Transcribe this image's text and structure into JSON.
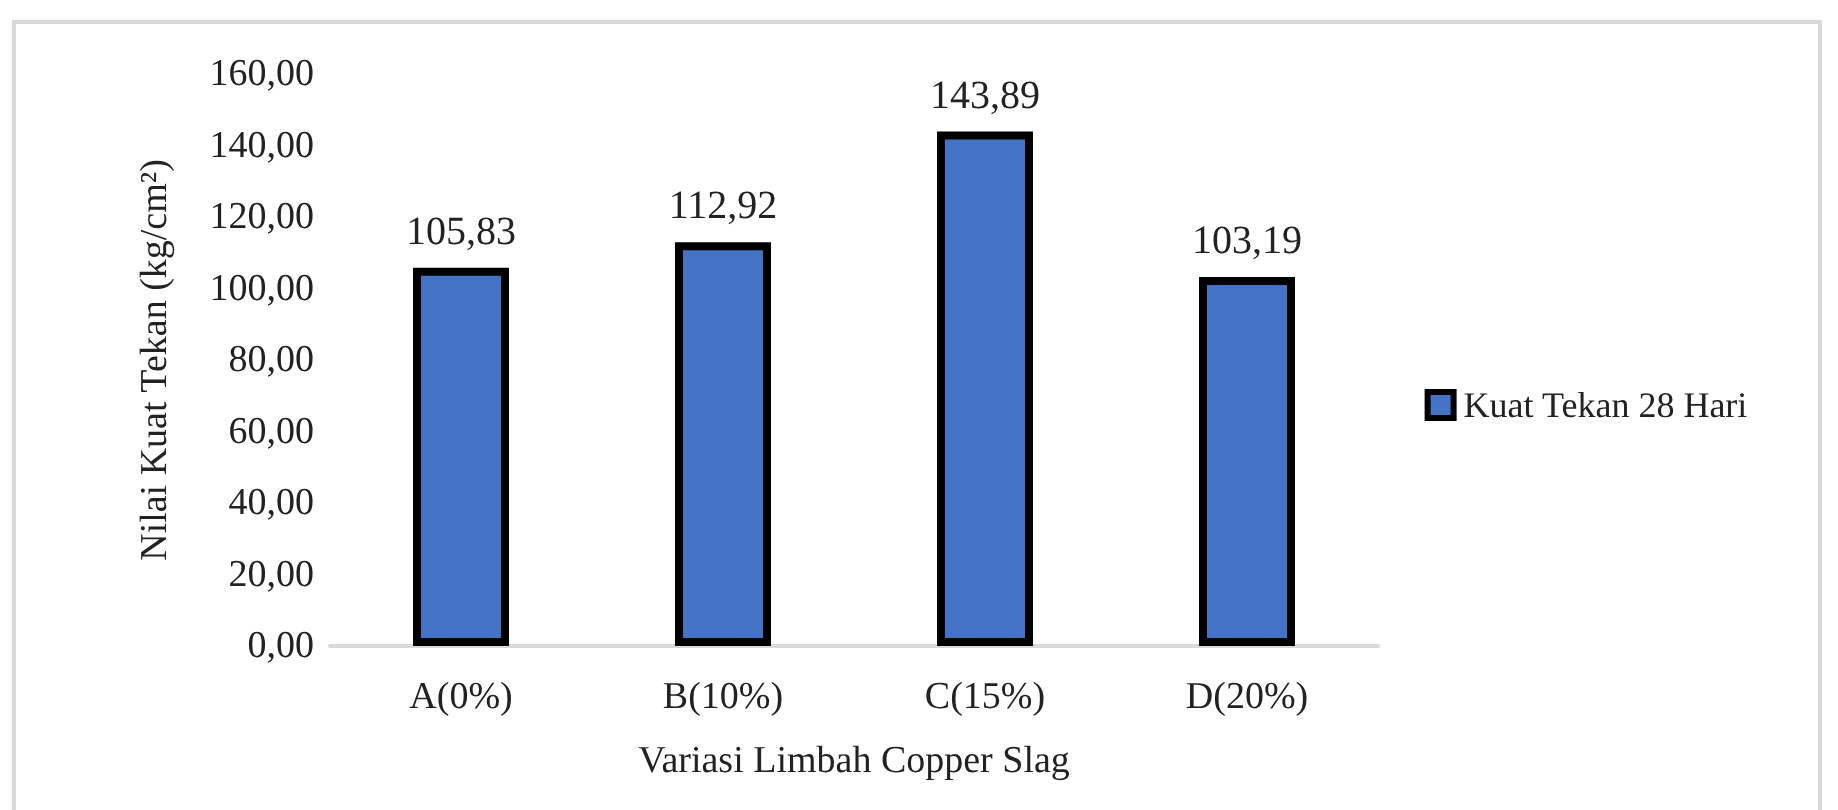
{
  "chart_data": {
    "type": "bar",
    "xlabel": "Variasi Limbah Copper Slag",
    "ylabel": "Nilai Kuat Tekan (kg/cm²)",
    "categories": [
      "A(0%)",
      "B(10%)",
      "C(15%)",
      "D(20%)"
    ],
    "series": [
      {
        "name": "Kuat Tekan 28 Hari",
        "color": "#4472c4",
        "values": [
          105.83,
          112.92,
          143.89,
          103.19
        ],
        "value_labels": [
          "105,83",
          "112,92",
          "143,89",
          "103,19"
        ]
      }
    ],
    "ylim": [
      0,
      160
    ],
    "yticks": [
      {
        "value": 0,
        "label": "0,00"
      },
      {
        "value": 20,
        "label": "20,00"
      },
      {
        "value": 40,
        "label": "40,00"
      },
      {
        "value": 60,
        "label": "60,00"
      },
      {
        "value": 80,
        "label": "80,00"
      },
      {
        "value": 100,
        "label": "100,00"
      },
      {
        "value": 120,
        "label": "120,00"
      },
      {
        "value": 140,
        "label": "140,00"
      },
      {
        "value": 160,
        "label": "160,00"
      }
    ],
    "grid": false,
    "legend": "right"
  }
}
